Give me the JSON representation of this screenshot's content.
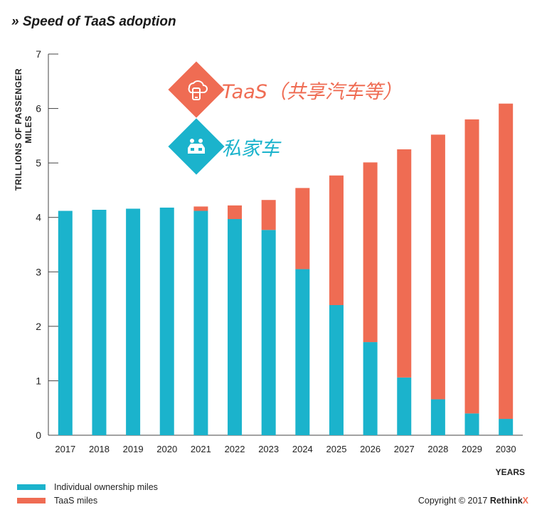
{
  "title": "» Speed of TaaS adoption",
  "chart_data": {
    "type": "bar",
    "stacked": true,
    "categories": [
      "2017",
      "2018",
      "2019",
      "2020",
      "2021",
      "2022",
      "2023",
      "2024",
      "2025",
      "2026",
      "2027",
      "2028",
      "2029",
      "2030"
    ],
    "series": [
      {
        "name": "Individual ownership miles",
        "color": "#1bb3cc",
        "values": [
          4.12,
          4.14,
          4.16,
          4.18,
          4.12,
          3.97,
          3.77,
          3.05,
          2.39,
          1.71,
          1.06,
          0.66,
          0.4,
          0.3
        ]
      },
      {
        "name": "TaaS miles",
        "color": "#ef6c53",
        "values": [
          0,
          0,
          0,
          0,
          0.08,
          0.25,
          0.55,
          1.49,
          2.38,
          3.3,
          4.19,
          4.86,
          5.4,
          5.79
        ]
      }
    ],
    "ylabel": "TRILLIONS OF PASSENGER MILES",
    "xlabel": "YEARS",
    "ylim": [
      0,
      7
    ],
    "yticks": [
      0,
      1,
      2,
      3,
      4,
      5,
      6,
      7
    ],
    "grid": false,
    "legend": "bottom-left"
  },
  "overlay": {
    "taas_label": "TaaS（共享汽车等）",
    "private_label": "私家车",
    "taas_icon": "cloud-car-phone-icon",
    "private_icon": "family-car-icon",
    "taas_color": "#ef6c53",
    "private_color": "#1bb3cc"
  },
  "legend": {
    "item1": "Individual ownership miles",
    "item2": "TaaS miles"
  },
  "copyright": {
    "text": "Copyright © 2017",
    "brand": "Rethink",
    "brand_x": "X"
  }
}
